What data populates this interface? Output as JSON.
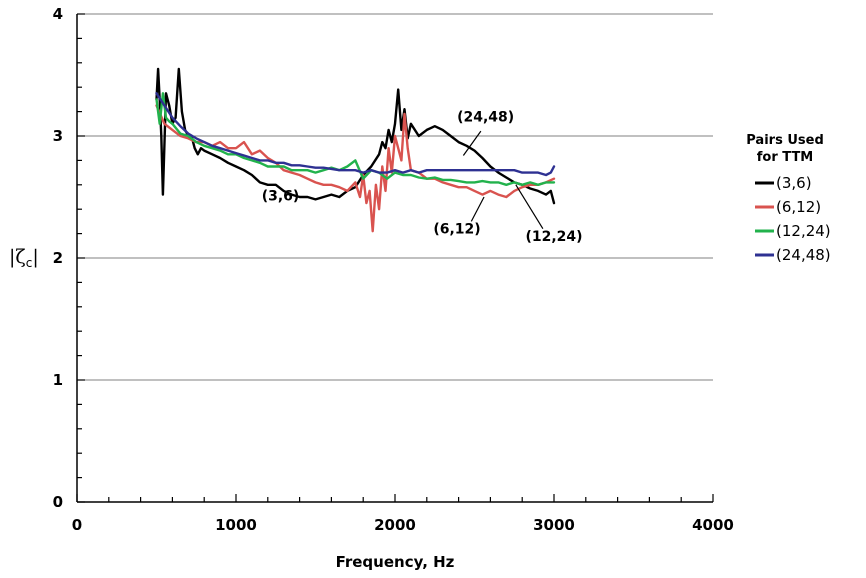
{
  "chart_data": {
    "type": "line",
    "xlabel": "Frequency, Hz",
    "ylabel": "|ζc|",
    "xlim": [
      0,
      4000
    ],
    "ylim": [
      0,
      4
    ],
    "x_ticks": [
      0,
      1000,
      2000,
      3000,
      4000
    ],
    "y_ticks": [
      0,
      1,
      2,
      3,
      4
    ],
    "x_tick_labels": [
      "0",
      "1000",
      "2000",
      "3000",
      "4000"
    ],
    "y_tick_labels": [
      "0",
      "1",
      "2",
      "3",
      "4"
    ],
    "grid": "horizontal",
    "legend": {
      "title_lines": [
        "Pairs Used",
        "for TTM"
      ],
      "placement": "right"
    },
    "series": [
      {
        "name": "(3,6)",
        "color": "#000000",
        "x": [
          500,
          510,
          520,
          530,
          540,
          560,
          580,
          600,
          620,
          640,
          660,
          680,
          700,
          720,
          740,
          760,
          780,
          800,
          850,
          900,
          950,
          1000,
          1050,
          1100,
          1150,
          1200,
          1250,
          1300,
          1350,
          1400,
          1450,
          1500,
          1550,
          1600,
          1650,
          1700,
          1750,
          1800,
          1850,
          1900,
          1920,
          1940,
          1960,
          1980,
          2000,
          2020,
          2040,
          2060,
          2080,
          2100,
          2150,
          2200,
          2250,
          2300,
          2350,
          2400,
          2450,
          2500,
          2550,
          2600,
          2650,
          2700,
          2750,
          2800,
          2850,
          2900,
          2950,
          2980,
          3000
        ],
        "y": [
          3.3,
          3.55,
          3.3,
          3.0,
          2.52,
          3.35,
          3.25,
          3.1,
          3.15,
          3.55,
          3.2,
          3.05,
          3.0,
          3.0,
          2.9,
          2.85,
          2.9,
          2.88,
          2.85,
          2.82,
          2.78,
          2.75,
          2.72,
          2.68,
          2.62,
          2.6,
          2.6,
          2.55,
          2.52,
          2.5,
          2.5,
          2.48,
          2.5,
          2.52,
          2.5,
          2.55,
          2.58,
          2.68,
          2.75,
          2.85,
          2.95,
          2.9,
          3.05,
          2.95,
          3.1,
          3.38,
          3.05,
          3.22,
          2.98,
          3.1,
          3.0,
          3.05,
          3.08,
          3.05,
          3.0,
          2.95,
          2.92,
          2.88,
          2.82,
          2.75,
          2.7,
          2.66,
          2.62,
          2.6,
          2.57,
          2.55,
          2.52,
          2.55,
          2.45
        ]
      },
      {
        "name": "(6,12)",
        "color": "#d9534f",
        "x": [
          500,
          550,
          600,
          650,
          700,
          750,
          800,
          850,
          900,
          950,
          1000,
          1050,
          1100,
          1150,
          1200,
          1250,
          1300,
          1350,
          1400,
          1450,
          1500,
          1550,
          1600,
          1650,
          1700,
          1750,
          1780,
          1800,
          1820,
          1840,
          1860,
          1880,
          1900,
          1920,
          1940,
          1960,
          1980,
          2000,
          2020,
          2040,
          2060,
          2080,
          2100,
          2150,
          2200,
          2250,
          2300,
          2350,
          2400,
          2450,
          2500,
          2550,
          2600,
          2650,
          2700,
          2750,
          2800,
          2850,
          2900,
          2950,
          3000
        ],
        "y": [
          3.25,
          3.1,
          3.05,
          3.0,
          2.98,
          2.95,
          2.95,
          2.92,
          2.95,
          2.9,
          2.9,
          2.95,
          2.85,
          2.88,
          2.82,
          2.78,
          2.72,
          2.7,
          2.68,
          2.65,
          2.62,
          2.6,
          2.6,
          2.58,
          2.55,
          2.62,
          2.5,
          2.68,
          2.45,
          2.55,
          2.22,
          2.6,
          2.4,
          2.75,
          2.55,
          2.9,
          2.7,
          3.0,
          2.9,
          2.8,
          3.18,
          2.9,
          2.72,
          2.7,
          2.65,
          2.65,
          2.62,
          2.6,
          2.58,
          2.58,
          2.55,
          2.52,
          2.55,
          2.52,
          2.5,
          2.55,
          2.58,
          2.6,
          2.6,
          2.62,
          2.65
        ]
      },
      {
        "name": "(12,24)",
        "color": "#22b24c",
        "x": [
          500,
          520,
          540,
          560,
          580,
          600,
          650,
          700,
          750,
          800,
          850,
          900,
          950,
          1000,
          1050,
          1100,
          1150,
          1200,
          1250,
          1300,
          1350,
          1400,
          1450,
          1500,
          1550,
          1600,
          1650,
          1700,
          1750,
          1800,
          1850,
          1900,
          1950,
          2000,
          2050,
          2100,
          2150,
          2200,
          2250,
          2300,
          2350,
          2400,
          2450,
          2500,
          2550,
          2600,
          2650,
          2700,
          2750,
          2800,
          2850,
          2900,
          2950,
          3000
        ],
        "y": [
          3.3,
          3.1,
          3.35,
          3.15,
          3.12,
          3.1,
          3.02,
          3.0,
          2.95,
          2.92,
          2.9,
          2.88,
          2.85,
          2.85,
          2.82,
          2.8,
          2.78,
          2.75,
          2.75,
          2.75,
          2.72,
          2.72,
          2.72,
          2.7,
          2.72,
          2.74,
          2.72,
          2.75,
          2.8,
          2.65,
          2.72,
          2.7,
          2.65,
          2.7,
          2.68,
          2.68,
          2.66,
          2.65,
          2.66,
          2.64,
          2.64,
          2.63,
          2.62,
          2.62,
          2.63,
          2.62,
          2.62,
          2.6,
          2.62,
          2.6,
          2.62,
          2.6,
          2.62,
          2.62
        ]
      },
      {
        "name": "(24,48)",
        "color": "#2e3192",
        "x": [
          500,
          550,
          600,
          650,
          700,
          750,
          800,
          850,
          900,
          950,
          1000,
          1050,
          1100,
          1150,
          1200,
          1250,
          1300,
          1350,
          1400,
          1450,
          1500,
          1550,
          1600,
          1650,
          1700,
          1750,
          1800,
          1850,
          1900,
          1950,
          2000,
          2050,
          2100,
          2150,
          2200,
          2250,
          2300,
          2350,
          2400,
          2450,
          2500,
          2550,
          2600,
          2650,
          2700,
          2750,
          2800,
          2850,
          2900,
          2950,
          2980,
          3000
        ],
        "y": [
          3.35,
          3.25,
          3.15,
          3.08,
          3.02,
          2.98,
          2.95,
          2.92,
          2.9,
          2.88,
          2.86,
          2.84,
          2.82,
          2.8,
          2.8,
          2.78,
          2.78,
          2.76,
          2.76,
          2.75,
          2.74,
          2.74,
          2.73,
          2.72,
          2.72,
          2.72,
          2.7,
          2.72,
          2.7,
          2.7,
          2.72,
          2.7,
          2.72,
          2.7,
          2.72,
          2.72,
          2.72,
          2.72,
          2.72,
          2.72,
          2.72,
          2.72,
          2.72,
          2.72,
          2.72,
          2.72,
          2.7,
          2.7,
          2.7,
          2.68,
          2.7,
          2.75
        ]
      }
    ],
    "annotations": [
      {
        "text": "(24,48)",
        "x": 2570,
        "y": 3.12,
        "line_from": [
          2540,
          3.04
        ],
        "line_to": [
          2430,
          2.84
        ]
      },
      {
        "text": "(3,6)",
        "x": 1280,
        "y": 2.47
      },
      {
        "text": "(6,12)",
        "x": 2390,
        "y": 2.2,
        "line_from": [
          2480,
          2.3
        ],
        "line_to": [
          2560,
          2.5
        ]
      },
      {
        "text": "(12,24)",
        "x": 3000,
        "y": 2.14,
        "line_from": [
          2930,
          2.24
        ],
        "line_to": [
          2760,
          2.6
        ]
      }
    ]
  }
}
